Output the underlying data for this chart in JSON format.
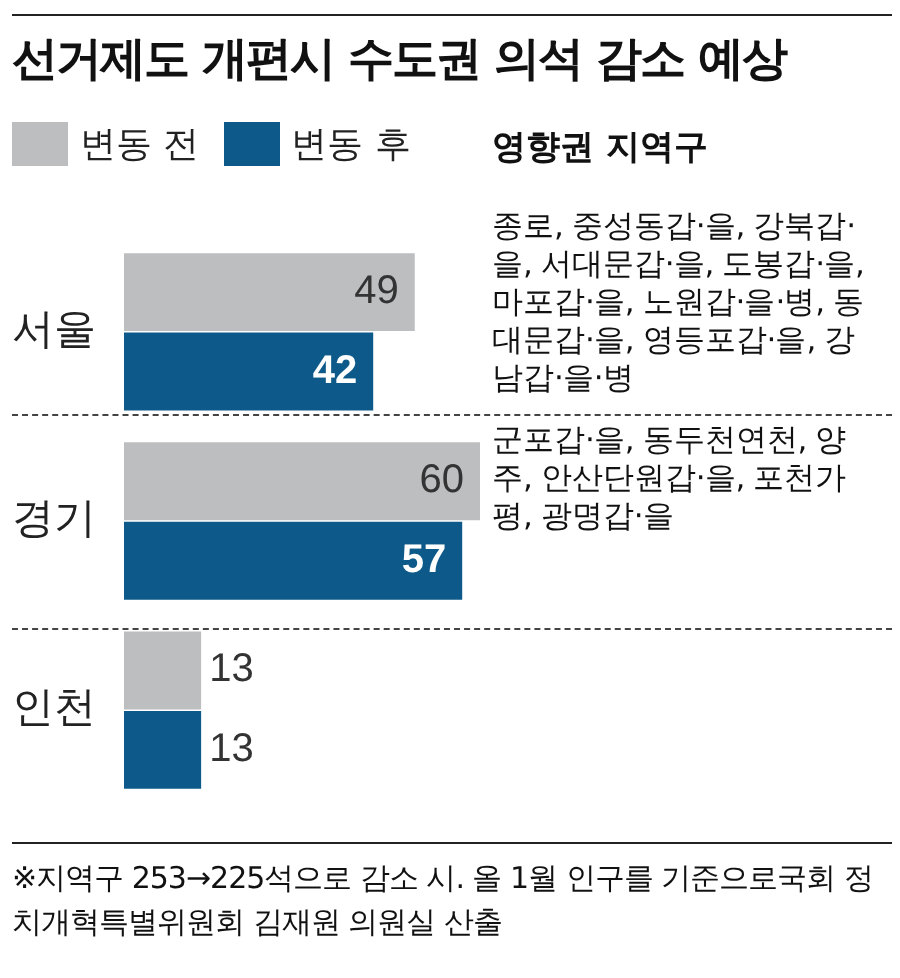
{
  "chart_data": {
    "type": "bar",
    "orientation": "horizontal",
    "title": "선거제도 개편시 수도권 의석 감소 예상",
    "categories": [
      "서울",
      "경기",
      "인천"
    ],
    "series": [
      {
        "name": "변동 전",
        "color": "#bcbec0",
        "values": [
          49,
          60,
          13
        ]
      },
      {
        "name": "변동 후",
        "color": "#0d5a8a",
        "values": [
          42,
          57,
          13
        ]
      }
    ],
    "data_labels": true,
    "legend": "top left",
    "annotations": [
      "영향권 지역구",
      "종로, 중성동갑·을, 강북갑·을, 서대문갑·을, 도봉갑·을, 마포갑·을, 노원갑·을·병, 동대문갑·을, 영등포갑·을, 강남갑·을·병",
      "군포갑·을, 동두천연천, 양주, 안산단원갑·을, 포천가평, 광명갑·을",
      "※지역구 253→225석으로 감소 시. 올 1월 인구를 기준으로국회 정치개혁특별위원회 김재원 의원실 산출"
    ]
  }
}
